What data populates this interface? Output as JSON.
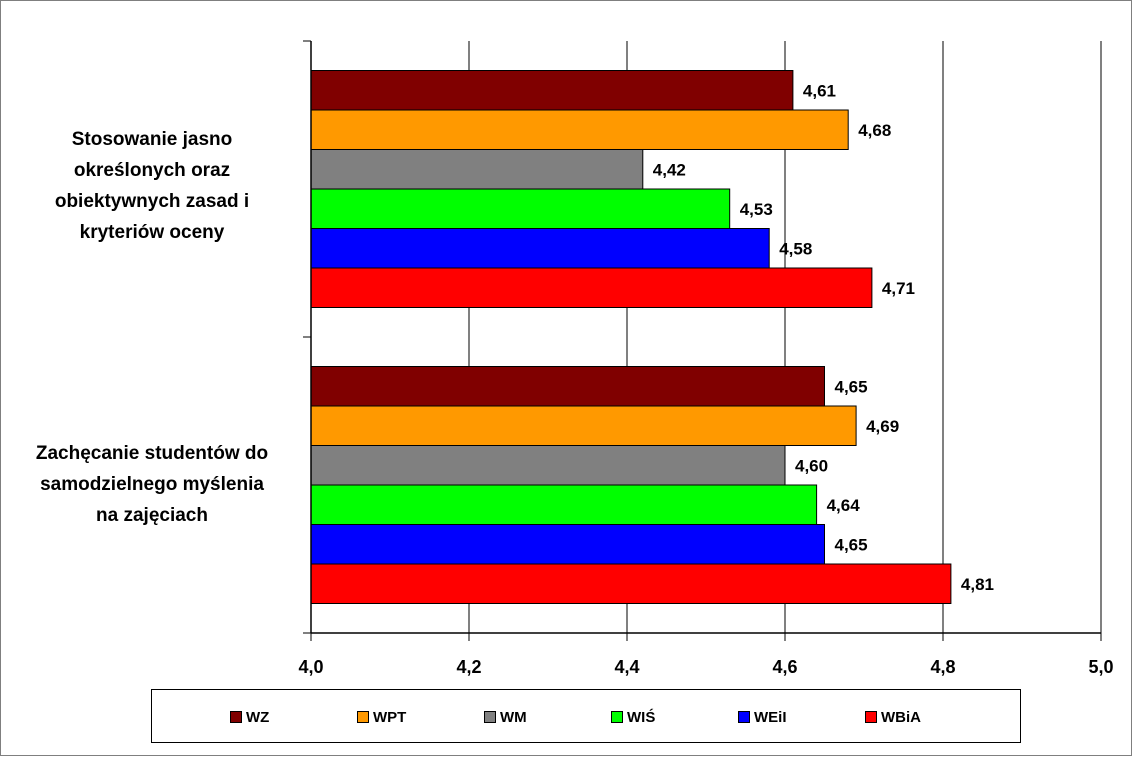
{
  "chart_data": {
    "type": "bar",
    "orientation": "horizontal",
    "categories": [
      "Stosowanie jasno\nokreślonych oraz\nobiektywnych zasad i\nkryteriów oceny",
      "Zachęcanie studentów do\nsamodzielnego myślenia\nna zajęciach"
    ],
    "series": [
      {
        "name": "WZ",
        "color": "#800000",
        "values": [
          4.61,
          4.65
        ],
        "labels": [
          "4,61",
          "4,65"
        ]
      },
      {
        "name": "WPT",
        "color": "#ff9900",
        "values": [
          4.68,
          4.69
        ],
        "labels": [
          "4,68",
          "4,69"
        ]
      },
      {
        "name": "WM",
        "color": "#808080",
        "values": [
          4.42,
          4.6
        ],
        "labels": [
          "4,42",
          "4,60"
        ]
      },
      {
        "name": "WIŚ",
        "color": "#00ff00",
        "values": [
          4.53,
          4.64
        ],
        "labels": [
          "4,53",
          "4,64"
        ]
      },
      {
        "name": "WEiI",
        "color": "#0000ff",
        "values": [
          4.58,
          4.65
        ],
        "labels": [
          "4,58",
          "4,65"
        ]
      },
      {
        "name": "WBiA",
        "color": "#ff0000",
        "values": [
          4.71,
          4.81
        ],
        "labels": [
          "4,71",
          "4,81"
        ]
      }
    ],
    "xlim": [
      4.0,
      5.0
    ],
    "xticks": [
      4.0,
      4.2,
      4.4,
      4.6,
      4.8,
      5.0
    ],
    "xtick_labels": [
      "4,0",
      "4,2",
      "4,4",
      "4,6",
      "4,8",
      "5,0"
    ],
    "grid": "vertical",
    "legend_position": "bottom"
  }
}
